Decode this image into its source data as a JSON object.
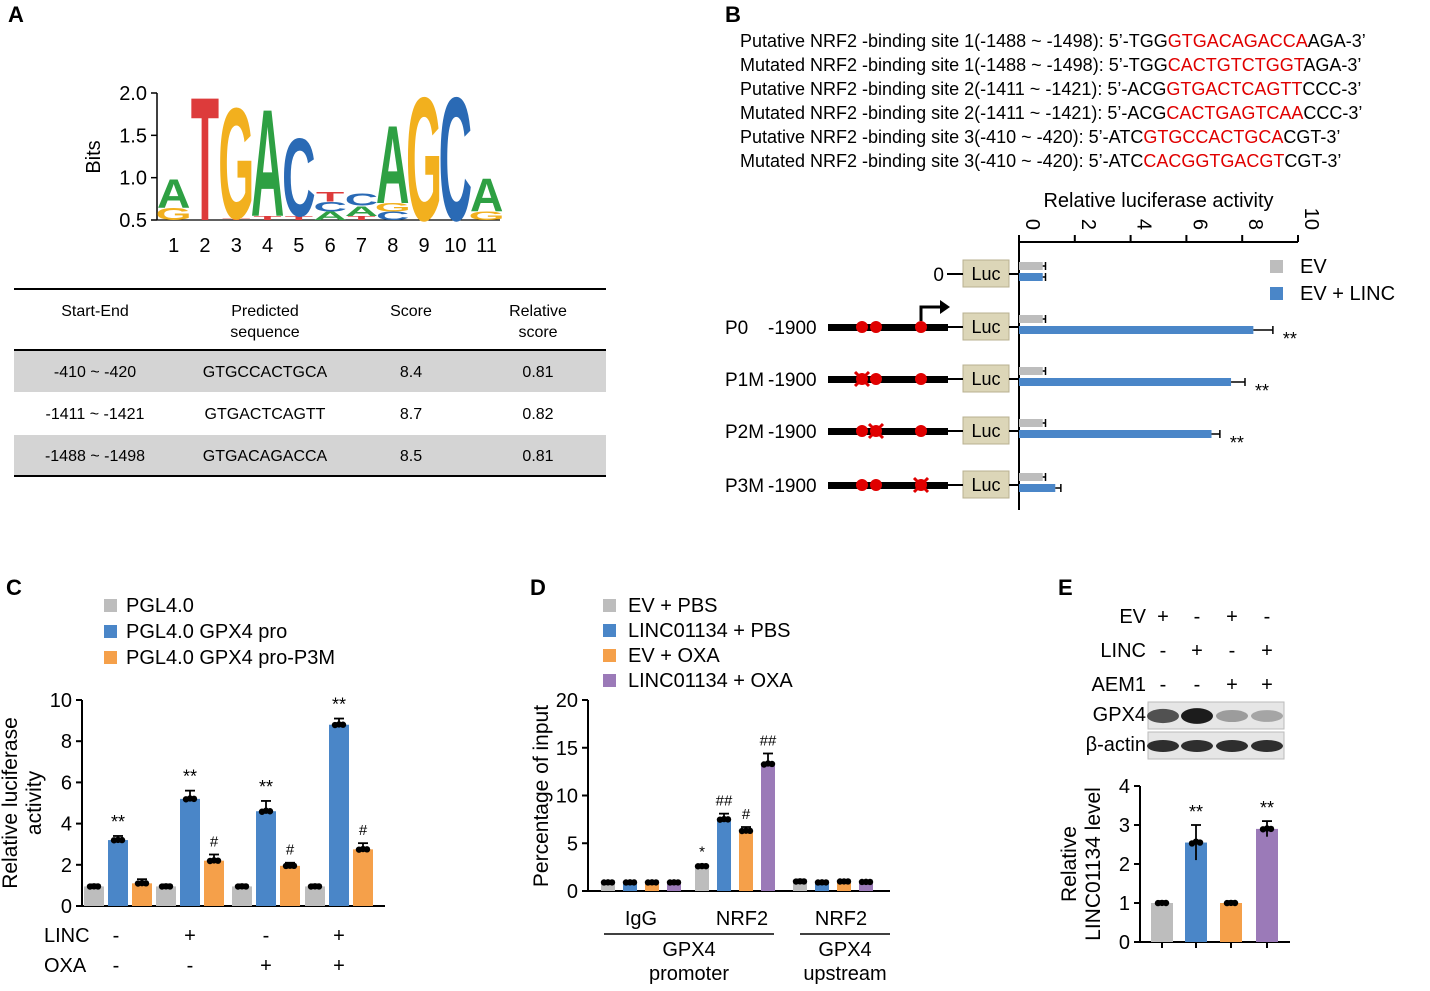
{
  "panels": {
    "A": "A",
    "B": "B",
    "C": "C",
    "D": "D",
    "E": "E"
  },
  "panelA": {
    "logo": {
      "ylabel": "Bits",
      "yticks": [
        "2.0",
        "1.5",
        "1.0",
        "0.5"
      ],
      "xticks": [
        "1",
        "2",
        "3",
        "4",
        "5",
        "6",
        "7",
        "8",
        "9",
        "10",
        "11"
      ],
      "letters": [
        {
          "pos": 1,
          "stack": [
            "G",
            "A"
          ]
        },
        {
          "pos": 2,
          "stack": [
            "T"
          ]
        },
        {
          "pos": 3,
          "stack": [
            "T",
            "G"
          ]
        },
        {
          "pos": 4,
          "stack": [
            "T",
            "A"
          ]
        },
        {
          "pos": 5,
          "stack": [
            "T",
            "C"
          ]
        },
        {
          "pos": 6,
          "stack": [
            "A",
            "C",
            "T"
          ]
        },
        {
          "pos": 7,
          "stack": [
            "T",
            "A",
            "C"
          ]
        },
        {
          "pos": 8,
          "stack": [
            "C",
            "G",
            "A"
          ]
        },
        {
          "pos": 9,
          "stack": [
            "G"
          ]
        },
        {
          "pos": 10,
          "stack": [
            "C"
          ]
        },
        {
          "pos": 11,
          "stack": [
            "G",
            "A"
          ]
        }
      ],
      "letter_colors": {
        "A": "#2ea043",
        "C": "#2a6ab5",
        "G": "#f2b01e",
        "T": "#dd3b3b"
      }
    },
    "table": {
      "headers": [
        "Start-End",
        "Predicted\nsequence",
        "Score",
        "Relative\nscore"
      ],
      "header_lines": [
        [
          "Start-End"
        ],
        [
          "Predicted",
          "sequence"
        ],
        [
          "Score"
        ],
        [
          "Relative",
          "score"
        ]
      ],
      "rows": [
        [
          "-410 ~ -420",
          "GTGCCACTGCA",
          "8.4",
          "0.81"
        ],
        [
          "-1411 ~ -1421",
          "GTGACTCAGTT",
          "8.7",
          "0.82"
        ],
        [
          "-1488 ~ -1498",
          "GTGACAGACCA",
          "8.5",
          "0.81"
        ]
      ],
      "shaded_color": "#d4d4d4"
    }
  },
  "panelB": {
    "sites": [
      {
        "pre": "Putative NRF2 -binding site 1(-1488 ~ -1498): 5’-TGG",
        "red": "GTGACAGACCA",
        "post": "AGA-3’"
      },
      {
        "pre": "Mutated NRF2 -binding site 1(-1488 ~ -1498): 5’-TGG",
        "red": "CACTGTCTGGT",
        "post": "AGA-3’"
      },
      {
        "pre": "Putative NRF2 -binding site 2(-1411 ~ -1421): 5’-ACG",
        "red": "GTGACTCAGTT",
        "post": "CCC-3’"
      },
      {
        "pre": "Mutated NRF2 -binding site 2(-1411 ~ -1421): 5’-ACG",
        "red": "CACTGAGTCAA",
        "post": "CCC-3’"
      },
      {
        "pre": "Putative NRF2 -binding site 3(-410 ~ -420): 5’-ATC",
        "red": "GTGCCACTGCA",
        "post": "CGT-3’"
      },
      {
        "pre": "Mutated NRF2 -binding site 3(-410 ~ -420): 5’-ATC",
        "red": "CACGGTGACGT",
        "post": "CGT-3’"
      }
    ],
    "constructs": [
      {
        "name": "",
        "start": "0",
        "luc": "Luc",
        "sites": []
      },
      {
        "name": "P0",
        "start": "-1900",
        "luc": "Luc",
        "sites": [
          "wt",
          "wt",
          "wt"
        ],
        "arrow": true
      },
      {
        "name": "P1M",
        "start": "-1900",
        "luc": "Luc",
        "sites": [
          "mut",
          "wt",
          "wt"
        ]
      },
      {
        "name": "P2M",
        "start": "-1900",
        "luc": "Luc",
        "sites": [
          "wt",
          "mut",
          "wt"
        ]
      },
      {
        "name": "P3M",
        "start": "-1900",
        "luc": "Luc",
        "sites": [
          "wt",
          "wt",
          "mut"
        ]
      }
    ],
    "colors": {
      "red": "#e00000",
      "luc": "#dcd6b8",
      "ev": "#bdbdbd",
      "linc": "#4a86c8"
    }
  },
  "chart_data": [
    {
      "id": "B",
      "type": "bar",
      "orientation": "horizontal",
      "title": "Relative luciferase activity",
      "xlim": [
        0,
        10
      ],
      "ticks": [
        "0",
        "2",
        "4",
        "6",
        "8",
        "10"
      ],
      "categories": [
        "0",
        "P0",
        "P1M",
        "P2M",
        "P3M"
      ],
      "series": [
        {
          "name": "EV",
          "values": [
            0.85,
            0.85,
            0.85,
            0.85,
            0.85
          ],
          "errors": [
            0.1,
            0.1,
            0.1,
            0.1,
            0.1
          ]
        },
        {
          "name": "EV + LINC",
          "values": [
            0.85,
            8.4,
            7.6,
            6.9,
            1.3
          ],
          "errors": [
            0.1,
            0.7,
            0.5,
            0.3,
            0.2
          ]
        }
      ],
      "annotations": [
        "",
        "**",
        "**",
        "**",
        ""
      ],
      "legend": [
        "EV",
        "EV + LINC"
      ]
    },
    {
      "id": "C",
      "type": "bar",
      "ylabel": "Relative luciferase\nactivity",
      "ylabel_lines": [
        "Relative luciferase",
        "activity"
      ],
      "ylim": [
        0,
        10
      ],
      "yticks": [
        "0",
        "2",
        "4",
        "6",
        "8",
        "10"
      ],
      "legend": [
        "PGL4.0",
        "PGL4.0 GPX4 pro",
        "PGL4.0 GPX4 pro-P3M"
      ],
      "series": [
        {
          "name": "PGL4.0",
          "values": [
            0.95,
            0.95,
            0.95,
            0.95
          ],
          "errors": [
            0.1,
            0.1,
            0.1,
            0.1
          ]
        },
        {
          "name": "PGL4.0 GPX4 pro",
          "values": [
            3.2,
            5.2,
            4.6,
            8.8
          ],
          "errors": [
            0.2,
            0.4,
            0.5,
            0.3
          ]
        },
        {
          "name": "PGL4.0 GPX4 pro-P3M",
          "values": [
            1.1,
            2.2,
            1.95,
            2.75
          ],
          "errors": [
            0.2,
            0.3,
            0.15,
            0.3
          ]
        }
      ],
      "annotations": [
        [
          "",
          "**",
          ""
        ],
        [
          "",
          "**",
          "#"
        ],
        [
          "",
          "**",
          "#"
        ],
        [
          "",
          "**",
          "#"
        ]
      ],
      "conditions": {
        "LINC": {
          "label": "LINC",
          "values": [
            "-",
            "+",
            "-",
            "+"
          ]
        },
        "OXA": {
          "label": "OXA",
          "values": [
            "-",
            "-",
            "+",
            "+"
          ]
        }
      }
    },
    {
      "id": "D",
      "type": "bar",
      "ylabel": "Percentage of input",
      "ylim": [
        0,
        20
      ],
      "yticks": [
        "0",
        "5",
        "10",
        "15",
        "20"
      ],
      "legend": [
        "EV + PBS",
        "LINC01134 + PBS",
        "EV + OXA",
        "LINC01134 + OXA"
      ],
      "categories": [
        "IgG",
        "NRF2",
        "NRF2"
      ],
      "group_labels": [
        "GPX4\npromoter",
        "GPX4\nupstream"
      ],
      "group_label_lines": [
        [
          "GPX4",
          "promoter"
        ],
        [
          "GPX4",
          "upstream"
        ]
      ],
      "series": [
        {
          "name": "EV + PBS",
          "values": [
            0.9,
            2.6,
            1.0
          ],
          "errors": [
            0.1,
            0.2,
            0.2
          ]
        },
        {
          "name": "LINC01134 + PBS",
          "values": [
            0.9,
            7.5,
            0.9
          ],
          "errors": [
            0.1,
            0.6,
            0.15
          ]
        },
        {
          "name": "EV + OXA",
          "values": [
            0.9,
            6.3,
            1.0
          ],
          "errors": [
            0.1,
            0.4,
            0.1
          ]
        },
        {
          "name": "LINC01134 + OXA",
          "values": [
            0.9,
            13.3,
            0.95
          ],
          "errors": [
            0.1,
            1.1,
            0.1
          ]
        }
      ],
      "annotations": [
        [
          "",
          "",
          "",
          ""
        ],
        [
          "*",
          "##",
          "#",
          "##"
        ],
        [
          "",
          "",
          "",
          ""
        ]
      ]
    },
    {
      "id": "E",
      "type": "bar",
      "ylabel": "Relative\nLINC01134 level",
      "ylabel_lines": [
        "Relative",
        "LINC01134 level"
      ],
      "ylim": [
        0,
        4
      ],
      "yticks": [
        "0",
        "1",
        "2",
        "3",
        "4"
      ],
      "conditions": [
        {
          "label": "EV",
          "values": [
            "+",
            "-",
            "+",
            "-"
          ]
        },
        {
          "label": "LINC",
          "values": [
            "-",
            "+",
            "-",
            "+"
          ]
        },
        {
          "label": "AEM1",
          "values": [
            "-",
            "-",
            "+",
            "+"
          ]
        }
      ],
      "blots": [
        "GPX4",
        "β-actin"
      ],
      "values": [
        1.0,
        2.55,
        1.0,
        2.9
      ],
      "errors": [
        0.05,
        0.45,
        0.05,
        0.2
      ],
      "annotations": [
        "",
        "**",
        "",
        "**"
      ],
      "colors": [
        "#bdbdbd",
        "#4a86c8",
        "#f5a04a",
        "#9b7ab8"
      ]
    }
  ],
  "series_colors": [
    "#bdbdbd",
    "#4a86c8",
    "#f5a04a",
    "#9b7ab8"
  ]
}
